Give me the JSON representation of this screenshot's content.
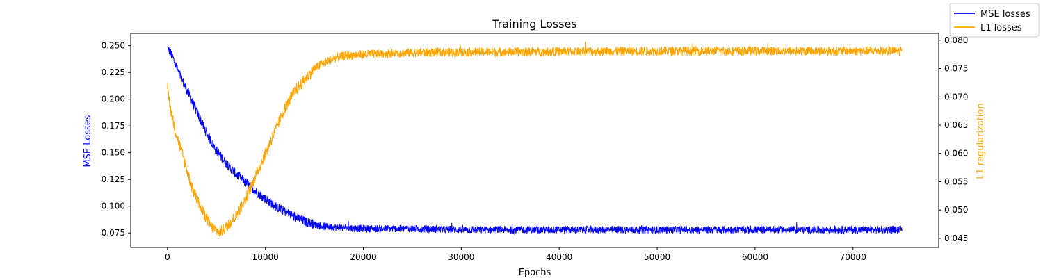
{
  "chart_data": {
    "type": "line",
    "title": "Training Losses",
    "xlabel": "Epochs",
    "ylabel_left": "MSE Losses",
    "ylabel_right": "L1 regularization",
    "xlim": [
      -3750,
      78750
    ],
    "ylim_left": [
      0.0615,
      0.2615
    ],
    "ylim_right": [
      0.0434,
      0.0812
    ],
    "x_ticks": [
      0,
      10000,
      20000,
      30000,
      40000,
      50000,
      60000,
      70000
    ],
    "y_ticks_left": [
      0.075,
      0.1,
      0.125,
      0.15,
      0.175,
      0.2,
      0.225,
      0.25
    ],
    "y_ticks_right": [
      0.045,
      0.05,
      0.055,
      0.06,
      0.065,
      0.07,
      0.075,
      0.08
    ],
    "grid": false,
    "legend_position": "top-right",
    "series": [
      {
        "name": "MSE losses",
        "color": "#0000ff",
        "axis": "left",
        "x": [
          0,
          500,
          1000,
          2000,
          3000,
          4000,
          5000,
          6000,
          7000,
          8000,
          9000,
          10000,
          11000,
          12000,
          13000,
          14000,
          15000,
          16000,
          18000,
          20000,
          25000,
          30000,
          40000,
          50000,
          60000,
          70000,
          75000
        ],
        "y": [
          0.248,
          0.24,
          0.228,
          0.208,
          0.188,
          0.168,
          0.152,
          0.14,
          0.13,
          0.122,
          0.114,
          0.107,
          0.1,
          0.095,
          0.09,
          0.086,
          0.083,
          0.081,
          0.08,
          0.079,
          0.079,
          0.078,
          0.078,
          0.078,
          0.078,
          0.078,
          0.078
        ],
        "noise": 0.0035
      },
      {
        "name": "L1 losses",
        "color": "#ffa500",
        "axis": "right",
        "x": [
          0,
          300,
          800,
          1500,
          2500,
          3500,
          4500,
          5300,
          6000,
          7000,
          8000,
          9000,
          10000,
          11000,
          12000,
          13000,
          14000,
          15000,
          16000,
          17000,
          18000,
          20000,
          25000,
          30000,
          40000,
          50000,
          60000,
          70000,
          75000
        ],
        "y": [
          0.072,
          0.068,
          0.064,
          0.06,
          0.054,
          0.05,
          0.047,
          0.046,
          0.047,
          0.049,
          0.052,
          0.056,
          0.06,
          0.064,
          0.068,
          0.071,
          0.073,
          0.075,
          0.076,
          0.0768,
          0.0772,
          0.0775,
          0.0778,
          0.0779,
          0.078,
          0.0781,
          0.0781,
          0.0781,
          0.0781
        ],
        "noise": 0.0008
      }
    ]
  }
}
